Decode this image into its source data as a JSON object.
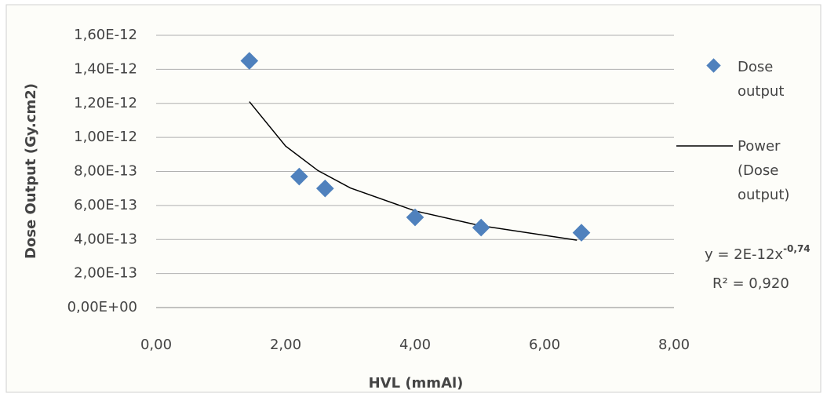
{
  "chart_data": {
    "type": "scatter",
    "x_label": "HVL (mmAl)",
    "y_label": "Dose Output (Gy.cm2)",
    "series": [
      {
        "name": "Dose output",
        "color": "#4f81bd",
        "x": [
          1.44,
          2.21,
          2.61,
          4.0,
          5.02,
          6.57
        ],
        "values": [
          1.45e-12,
          7.7e-13,
          7e-13,
          5.3e-13,
          4.7e-13,
          4.4e-13
        ]
      }
    ],
    "trendline": {
      "name": "Power (Dose output)",
      "color": "#000000",
      "x": [
        1.44,
        2,
        2.5,
        3,
        4,
        5,
        6.5
      ],
      "values": [
        1.21e-12,
        9.49e-13,
        8.05e-13,
        7.03e-13,
        5.68e-13,
        4.82e-13,
        3.96e-13
      ]
    },
    "annotations": {
      "equation": "y = 2E-12x",
      "exponent": "-0,74",
      "r_squared": "R² = 0,920"
    },
    "xlim": [
      0,
      8
    ],
    "ylim": [
      0,
      1.6e-12
    ],
    "xticks": [
      {
        "value": 0,
        "label": "0,00"
      },
      {
        "value": 2,
        "label": "2,00"
      },
      {
        "value": 4,
        "label": "4,00"
      },
      {
        "value": 6,
        "label": "6,00"
      },
      {
        "value": 8,
        "label": "8,00"
      }
    ],
    "yticks": [
      {
        "value": 0,
        "label": "0,00E+00"
      },
      {
        "value": 2e-13,
        "label": "2,00E-13"
      },
      {
        "value": 4e-13,
        "label": "4,00E-13"
      },
      {
        "value": 6e-13,
        "label": "6,00E-13"
      },
      {
        "value": 8e-13,
        "label": "8,00E-13"
      },
      {
        "value": 1e-12,
        "label": "1,00E-12"
      },
      {
        "value": 1.2e-12,
        "label": "1,20E-12"
      },
      {
        "value": 1.4e-12,
        "label": "1,40E-12"
      },
      {
        "value": 1.6e-12,
        "label": "1,60E-12"
      }
    ],
    "grid": true
  }
}
